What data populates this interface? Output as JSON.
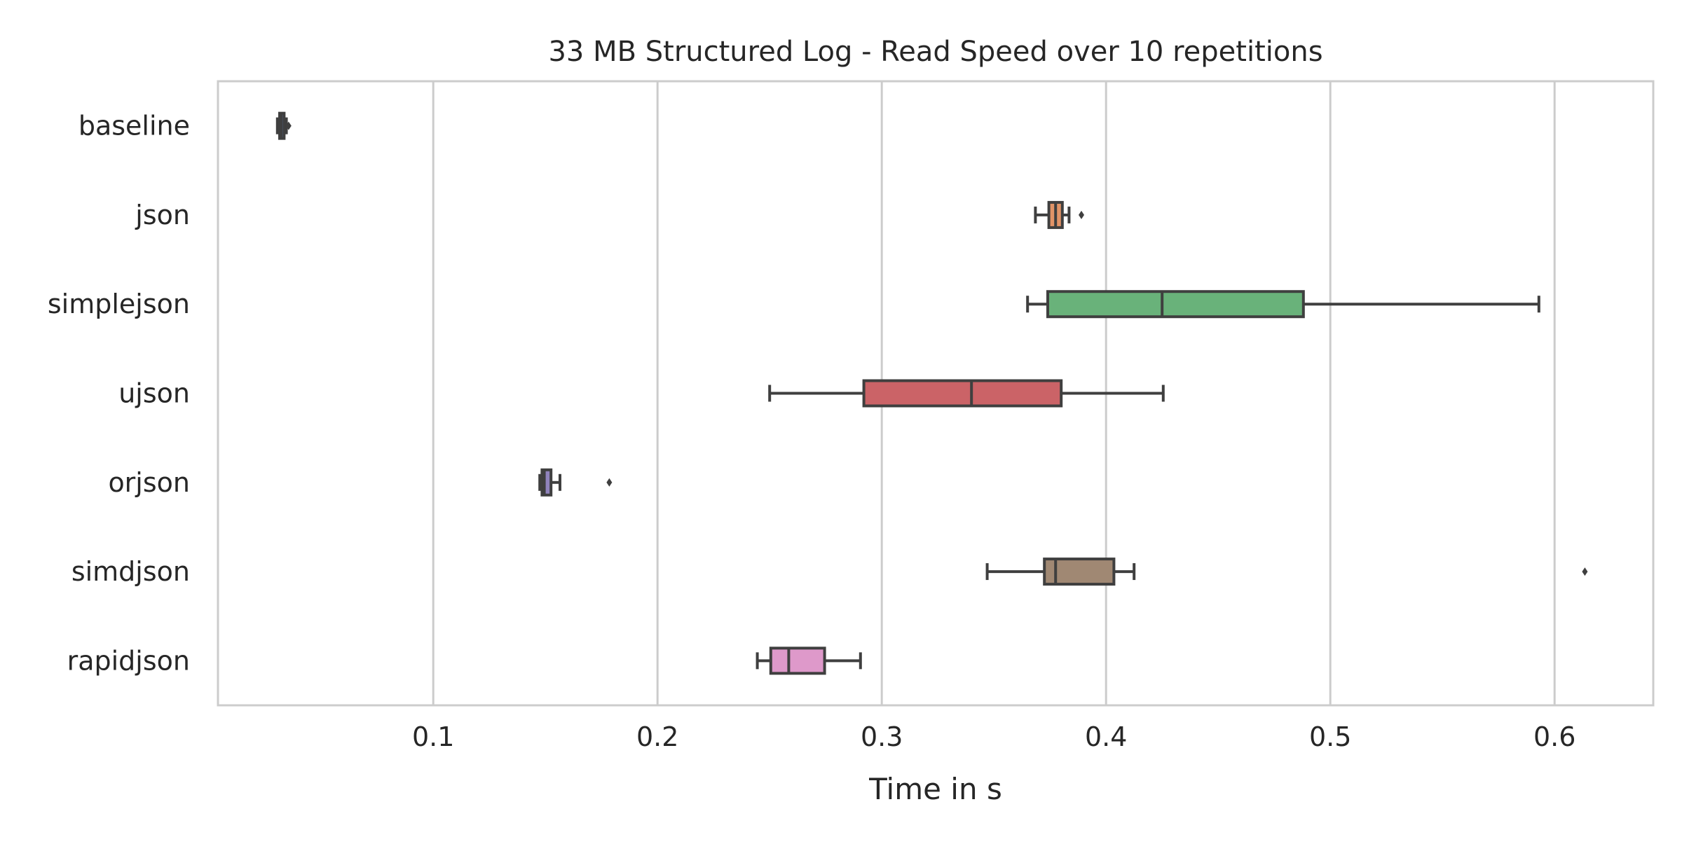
{
  "chart_data": {
    "type": "boxplot",
    "orientation": "horizontal",
    "title": "33 MB Structured Log - Read Speed over 10 repetitions",
    "xlabel": "Time in s",
    "ylabel": "",
    "xlim": [
      0.004,
      0.644
    ],
    "xticks": [
      0.1,
      0.2,
      0.3,
      0.4,
      0.5,
      0.6
    ],
    "xtick_labels": [
      "0.1",
      "0.2",
      "0.3",
      "0.4",
      "0.5",
      "0.6"
    ],
    "grid": "vertical",
    "legend": "none",
    "categories": [
      "baseline",
      "json",
      "simplejson",
      "ujson",
      "orjson",
      "simdjson",
      "rapidjson"
    ],
    "series": [
      {
        "label": "baseline",
        "color": "#4c72b0",
        "whislo": 0.0305,
        "q1": 0.0315,
        "med": 0.0322,
        "q3": 0.0335,
        "whishi": 0.0345,
        "fliers": [
          0.0355
        ]
      },
      {
        "label": "json",
        "color": "#dd8452",
        "whislo": 0.3685,
        "q1": 0.3745,
        "med": 0.3775,
        "q3": 0.3805,
        "whishi": 0.3835,
        "fliers": [
          0.389
        ]
      },
      {
        "label": "simplejson",
        "color": "#55a868",
        "whislo": 0.365,
        "q1": 0.374,
        "med": 0.425,
        "q3": 0.488,
        "whishi": 0.593,
        "fliers": []
      },
      {
        "label": "ujson",
        "color": "#c44e52",
        "whislo": 0.25,
        "q1": 0.292,
        "med": 0.34,
        "q3": 0.38,
        "whishi": 0.4255,
        "fliers": []
      },
      {
        "label": "orjson",
        "color": "#8172b3",
        "whislo": 0.1475,
        "q1": 0.1485,
        "med": 0.1495,
        "q3": 0.1525,
        "whishi": 0.1565,
        "fliers": [
          0.1785
        ]
      },
      {
        "label": "simdjson",
        "color": "#937860",
        "whislo": 0.347,
        "q1": 0.3725,
        "med": 0.3775,
        "q3": 0.4035,
        "whishi": 0.4125,
        "fliers": [
          0.6135
        ]
      },
      {
        "label": "rapidjson",
        "color": "#da8bc3",
        "whislo": 0.2445,
        "q1": 0.2505,
        "med": 0.2585,
        "q3": 0.2745,
        "whishi": 0.2905,
        "fliers": []
      }
    ]
  }
}
